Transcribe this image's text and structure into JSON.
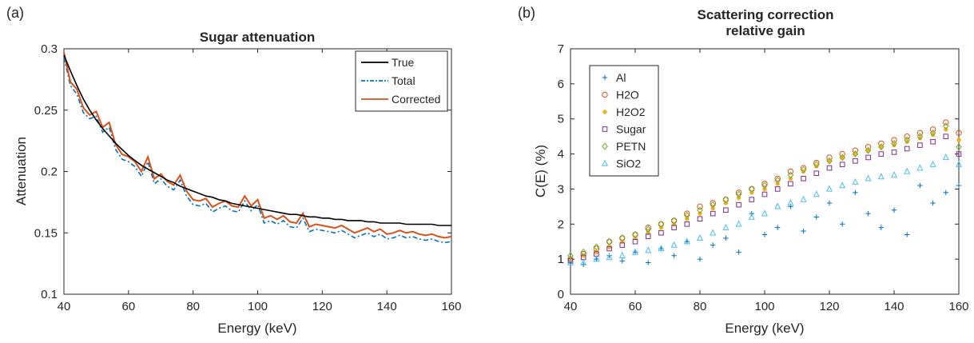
{
  "chart_data": [
    {
      "type": "line",
      "panel_label": "(a)",
      "title": "Sugar attenuation",
      "xlabel": "Energy (keV)",
      "ylabel": "Attenuation",
      "xlim": [
        40,
        160
      ],
      "ylim": [
        0.1,
        0.3
      ],
      "xticks": [
        "40",
        "60",
        "80",
        "100",
        "120",
        "140",
        "160"
      ],
      "yticks": [
        "0.1",
        "0.15",
        "0.2",
        "0.25",
        "0.3"
      ],
      "legend_position": "top-right",
      "grid": false,
      "x": [
        40,
        42,
        44,
        46,
        48,
        50,
        52,
        54,
        56,
        58,
        60,
        62,
        64,
        66,
        68,
        70,
        72,
        74,
        76,
        78,
        80,
        82,
        84,
        86,
        88,
        90,
        92,
        94,
        96,
        98,
        100,
        102,
        104,
        106,
        108,
        110,
        112,
        114,
        116,
        118,
        120,
        122,
        124,
        126,
        128,
        130,
        132,
        134,
        136,
        138,
        140,
        142,
        144,
        146,
        148,
        150,
        152,
        154,
        156,
        158,
        160
      ],
      "series": [
        {
          "name": "True",
          "color": "#000000",
          "dash": "solid",
          "values": [
            0.295,
            0.282,
            0.27,
            0.259,
            0.25,
            0.242,
            0.235,
            0.229,
            0.223,
            0.218,
            0.213,
            0.209,
            0.205,
            0.202,
            0.199,
            0.196,
            0.193,
            0.191,
            0.188,
            0.186,
            0.184,
            0.182,
            0.18,
            0.179,
            0.177,
            0.176,
            0.174,
            0.173,
            0.172,
            0.171,
            0.17,
            0.169,
            0.168,
            0.167,
            0.166,
            0.165,
            0.165,
            0.164,
            0.163,
            0.163,
            0.162,
            0.162,
            0.161,
            0.161,
            0.16,
            0.16,
            0.16,
            0.159,
            0.159,
            0.158,
            0.158,
            0.158,
            0.158,
            0.157,
            0.157,
            0.157,
            0.157,
            0.157,
            0.156,
            0.156,
            0.156
          ]
        },
        {
          "name": "Total",
          "color": "#0072BD",
          "dash": "dashdot",
          "values": [
            0.293,
            0.27,
            0.263,
            0.248,
            0.243,
            0.245,
            0.232,
            0.236,
            0.218,
            0.21,
            0.208,
            0.204,
            0.196,
            0.208,
            0.19,
            0.194,
            0.188,
            0.185,
            0.193,
            0.18,
            0.173,
            0.172,
            0.174,
            0.167,
            0.17,
            0.172,
            0.168,
            0.167,
            0.176,
            0.168,
            0.173,
            0.158,
            0.16,
            0.157,
            0.16,
            0.155,
            0.154,
            0.162,
            0.151,
            0.153,
            0.152,
            0.151,
            0.15,
            0.152,
            0.149,
            0.146,
            0.148,
            0.15,
            0.147,
            0.149,
            0.145,
            0.146,
            0.148,
            0.146,
            0.147,
            0.145,
            0.144,
            0.145,
            0.143,
            0.142,
            0.143
          ]
        },
        {
          "name": "Corrected",
          "color": "#D95319",
          "dash": "solid",
          "values": [
            0.297,
            0.273,
            0.267,
            0.252,
            0.246,
            0.249,
            0.236,
            0.24,
            0.222,
            0.214,
            0.212,
            0.208,
            0.2,
            0.212,
            0.194,
            0.198,
            0.192,
            0.189,
            0.197,
            0.184,
            0.177,
            0.176,
            0.178,
            0.171,
            0.174,
            0.176,
            0.172,
            0.171,
            0.18,
            0.172,
            0.177,
            0.162,
            0.164,
            0.161,
            0.164,
            0.159,
            0.158,
            0.166,
            0.155,
            0.157,
            0.156,
            0.155,
            0.154,
            0.156,
            0.153,
            0.15,
            0.152,
            0.154,
            0.151,
            0.153,
            0.149,
            0.15,
            0.152,
            0.15,
            0.151,
            0.149,
            0.148,
            0.149,
            0.147,
            0.146,
            0.147
          ]
        }
      ]
    },
    {
      "type": "scatter",
      "panel_label": "(b)",
      "title": [
        "Scattering correction",
        "relative gain"
      ],
      "xlabel": "Energy (keV)",
      "ylabel": "C(E) (%)",
      "xlim": [
        40,
        160
      ],
      "ylim": [
        0,
        7
      ],
      "xticks": [
        "40",
        "60",
        "80",
        "100",
        "120",
        "140",
        "160"
      ],
      "yticks": [
        "0",
        "1",
        "2",
        "3",
        "4",
        "5",
        "6",
        "7"
      ],
      "legend_position": "top-left",
      "grid": false,
      "x": [
        40,
        44,
        48,
        52,
        56,
        60,
        64,
        68,
        72,
        76,
        80,
        84,
        88,
        92,
        96,
        100,
        104,
        108,
        112,
        116,
        120,
        124,
        128,
        132,
        136,
        140,
        144,
        148,
        152,
        156,
        160
      ],
      "series": [
        {
          "name": "Al",
          "marker": "plus",
          "color": "#0072BD",
          "values": [
            0.9,
            0.85,
            1.0,
            1.1,
            0.95,
            1.2,
            0.9,
            1.3,
            1.1,
            1.5,
            1.0,
            1.4,
            1.6,
            1.2,
            2.3,
            1.7,
            1.9,
            2.5,
            1.8,
            2.2,
            2.6,
            2.0,
            2.9,
            2.3,
            1.9,
            2.4,
            1.7,
            3.1,
            2.6,
            2.9,
            3.1
          ]
        },
        {
          "name": "H2O",
          "marker": "circle",
          "color": "#D95319",
          "values": [
            1.0,
            1.15,
            1.3,
            1.5,
            1.6,
            1.7,
            1.9,
            2.0,
            2.1,
            2.3,
            2.5,
            2.6,
            2.7,
            2.9,
            3.0,
            3.15,
            3.3,
            3.5,
            3.6,
            3.75,
            3.9,
            4.0,
            4.1,
            4.2,
            4.3,
            4.4,
            4.5,
            4.6,
            4.7,
            4.9,
            4.6
          ]
        },
        {
          "name": "H2O2",
          "marker": "asterisk",
          "color": "#EDB120",
          "values": [
            1.0,
            1.1,
            1.2,
            1.35,
            1.5,
            1.6,
            1.75,
            1.9,
            2.0,
            2.15,
            2.3,
            2.45,
            2.6,
            2.75,
            2.9,
            3.0,
            3.15,
            3.3,
            3.5,
            3.65,
            3.8,
            3.9,
            4.0,
            4.1,
            4.2,
            4.25,
            4.35,
            4.45,
            4.55,
            4.7,
            4.4
          ]
        },
        {
          "name": "Sugar",
          "marker": "square",
          "color": "#7E2F8E",
          "values": [
            0.95,
            1.05,
            1.15,
            1.3,
            1.4,
            1.5,
            1.65,
            1.75,
            1.9,
            2.0,
            2.15,
            2.3,
            2.4,
            2.55,
            2.7,
            2.85,
            3.0,
            3.15,
            3.3,
            3.45,
            3.6,
            3.7,
            3.8,
            3.9,
            4.0,
            4.05,
            4.15,
            4.25,
            4.35,
            4.5,
            4.0
          ]
        },
        {
          "name": "PETN",
          "marker": "diamond",
          "color": "#77AC30",
          "values": [
            1.1,
            1.2,
            1.35,
            1.5,
            1.6,
            1.7,
            1.85,
            2.0,
            2.1,
            2.25,
            2.4,
            2.55,
            2.7,
            2.85,
            3.0,
            3.1,
            3.25,
            3.4,
            3.55,
            3.7,
            3.8,
            3.9,
            4.0,
            4.1,
            4.2,
            4.3,
            4.4,
            4.5,
            4.6,
            4.8,
            4.2
          ]
        },
        {
          "name": "SiO2",
          "marker": "triangle",
          "color": "#4DBEEE",
          "values": [
            0.9,
            0.9,
            1.0,
            1.05,
            1.1,
            1.2,
            1.25,
            1.3,
            1.4,
            1.5,
            1.6,
            1.75,
            1.9,
            2.0,
            2.2,
            2.3,
            2.5,
            2.6,
            2.7,
            2.85,
            3.0,
            3.1,
            3.2,
            3.3,
            3.35,
            3.4,
            3.5,
            3.6,
            3.7,
            3.9,
            3.7
          ]
        }
      ]
    }
  ]
}
